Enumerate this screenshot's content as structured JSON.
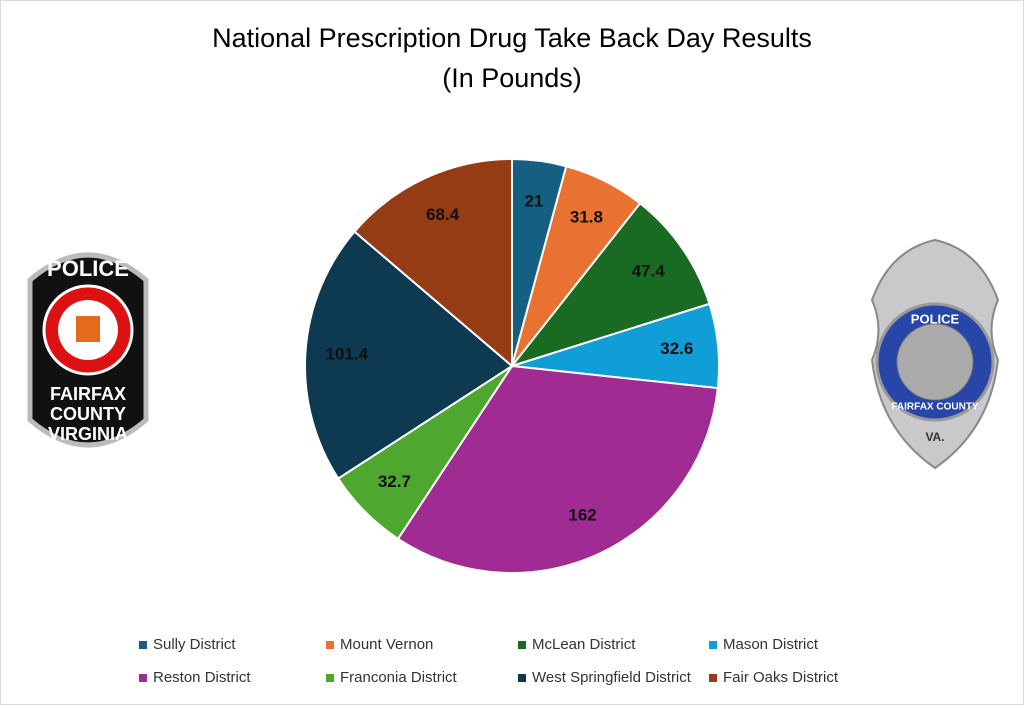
{
  "chart_data": {
    "type": "pie",
    "title": "National Prescription Drug Take Back Day Results",
    "subtitle": "(In Pounds)",
    "categories": [
      "Sully District",
      "Mount Vernon",
      "McLean District",
      "Mason District",
      "Reston District",
      "Franconia District",
      "West Springfield District",
      "Fair Oaks District"
    ],
    "values": [
      21,
      31.8,
      47.4,
      32.6,
      162,
      32.7,
      101.4,
      68.4
    ],
    "colors": [
      "#156082",
      "#e97132",
      "#196b24",
      "#0f9ed5",
      "#a02b93",
      "#4ea72e",
      "#0e3a51",
      "#953c14"
    ],
    "legend": "bottom"
  },
  "logos": [
    {
      "lines": [
        "POLICE",
        "FAIRFAX",
        "COUNTY",
        "VIRGINIA"
      ]
    },
    {
      "lines": [
        "POLICE",
        "FAIRFAX COUNTY",
        "VA."
      ]
    }
  ]
}
